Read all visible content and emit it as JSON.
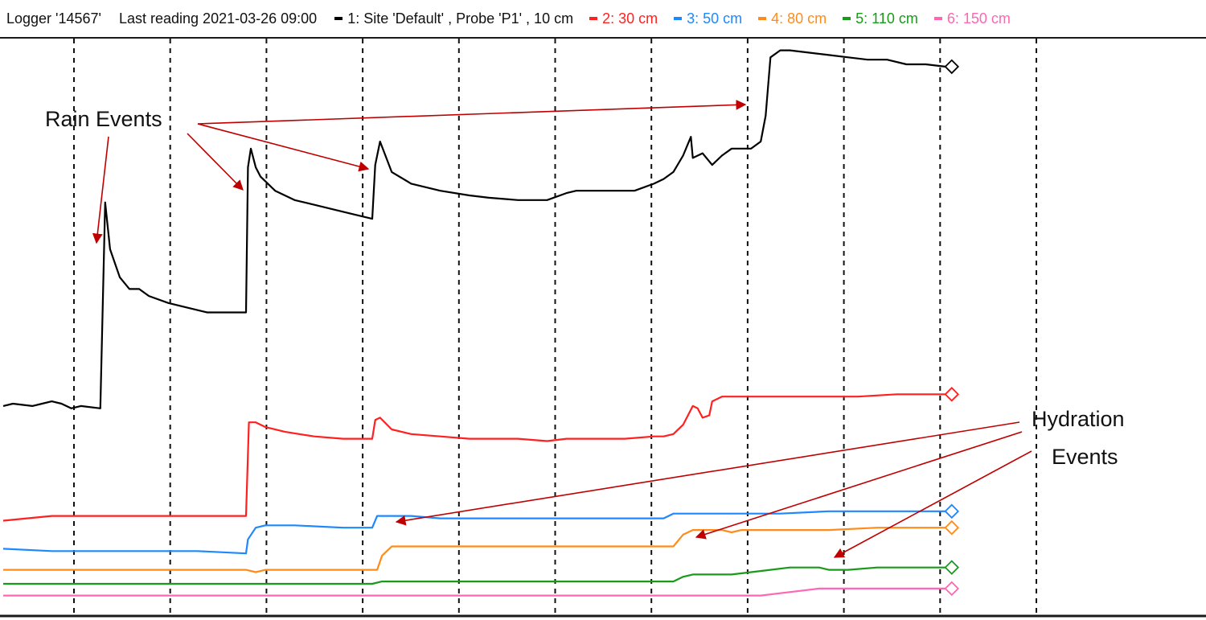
{
  "header": {
    "logger": "Logger '14567'",
    "last_reading": "Last reading 2021-03-26 09:00"
  },
  "legend": [
    {
      "label": "1: Site 'Default' , Probe 'P1' , 10 cm",
      "color": "#000000"
    },
    {
      "label": "2: 30 cm",
      "color": "#ff2020"
    },
    {
      "label": "3: 50 cm",
      "color": "#1e88ff"
    },
    {
      "label": "4: 80 cm",
      "color": "#ff8c1a"
    },
    {
      "label": "5: 110 cm",
      "color": "#1a9a1a"
    },
    {
      "label": "6: 150 cm",
      "color": "#ff66b3"
    }
  ],
  "annotations": {
    "rain_label": "Rain Events",
    "hydration_label_line1": "Hydration",
    "hydration_label_line2": "Events",
    "arrow_color": "#c00000"
  },
  "chart_data": {
    "type": "line",
    "title": "",
    "xlabel": "",
    "ylabel": "",
    "grid": "vertical dashed",
    "legend_position": "top",
    "series": [
      {
        "name": "1: Site 'Default' , Probe 'P1' , 10 cm",
        "color": "#000000",
        "points": [
          [
            0,
            520
          ],
          [
            1,
            519
          ],
          [
            3,
            520
          ],
          [
            4,
            519
          ],
          [
            5,
            518
          ],
          [
            6,
            519
          ],
          [
            7,
            521
          ],
          [
            8,
            520
          ],
          [
            10,
            521
          ],
          [
            10.5,
            433
          ],
          [
            11,
            453
          ],
          [
            12,
            465
          ],
          [
            13,
            470
          ],
          [
            14,
            470
          ],
          [
            15,
            473
          ],
          [
            17,
            476
          ],
          [
            19,
            478
          ],
          [
            21,
            480
          ],
          [
            23,
            480
          ],
          [
            25,
            480
          ],
          [
            25.2,
            418
          ],
          [
            25.5,
            410
          ],
          [
            26,
            418
          ],
          [
            26.5,
            422
          ],
          [
            28,
            428
          ],
          [
            30,
            432
          ],
          [
            32,
            434
          ],
          [
            34,
            436
          ],
          [
            36,
            438
          ],
          [
            38,
            440
          ],
          [
            38.3,
            417
          ],
          [
            38.8,
            407
          ],
          [
            40,
            420
          ],
          [
            42,
            425
          ],
          [
            45,
            428
          ],
          [
            48,
            430
          ],
          [
            50,
            431
          ],
          [
            53,
            432
          ],
          [
            56,
            432
          ],
          [
            58,
            429
          ],
          [
            59,
            428
          ],
          [
            62,
            428
          ],
          [
            65,
            428
          ],
          [
            67,
            425
          ],
          [
            68,
            423
          ],
          [
            69,
            420
          ],
          [
            70,
            413
          ],
          [
            70.8,
            405
          ],
          [
            71,
            414
          ],
          [
            72,
            412
          ],
          [
            73,
            417
          ],
          [
            74,
            413
          ],
          [
            75,
            410
          ],
          [
            76,
            410
          ],
          [
            77,
            410
          ],
          [
            78,
            407
          ],
          [
            78.5,
            396
          ],
          [
            79,
            371
          ],
          [
            80,
            368
          ],
          [
            81,
            368
          ],
          [
            83,
            369
          ],
          [
            85,
            370
          ],
          [
            87,
            371
          ],
          [
            89,
            372
          ],
          [
            91,
            372
          ],
          [
            93,
            374
          ],
          [
            95,
            374
          ],
          [
            97,
            375
          ]
        ]
      },
      {
        "name": "2: 30 cm",
        "color": "#ff2020",
        "points": [
          [
            0,
            569
          ],
          [
            5,
            567
          ],
          [
            10,
            567
          ],
          [
            15,
            567
          ],
          [
            20,
            567
          ],
          [
            25,
            567
          ],
          [
            25.3,
            527
          ],
          [
            26,
            527
          ],
          [
            27,
            529
          ],
          [
            29,
            531
          ],
          [
            32,
            533
          ],
          [
            35,
            534
          ],
          [
            38,
            534
          ],
          [
            38.3,
            526
          ],
          [
            38.8,
            525
          ],
          [
            40,
            530
          ],
          [
            42,
            532
          ],
          [
            45,
            533
          ],
          [
            48,
            534
          ],
          [
            50,
            534
          ],
          [
            53,
            534
          ],
          [
            56,
            535
          ],
          [
            58,
            534
          ],
          [
            61,
            534
          ],
          [
            64,
            534
          ],
          [
            67,
            533
          ],
          [
            68,
            533
          ],
          [
            69,
            532
          ],
          [
            70,
            528
          ],
          [
            71,
            520
          ],
          [
            71.5,
            521
          ],
          [
            72,
            525
          ],
          [
            72.7,
            524
          ],
          [
            73,
            518
          ],
          [
            74,
            516
          ],
          [
            76,
            516
          ],
          [
            80,
            516
          ],
          [
            84,
            516
          ],
          [
            88,
            516
          ],
          [
            92,
            515
          ],
          [
            96,
            515
          ],
          [
            97,
            515
          ]
        ]
      },
      {
        "name": "3: 50 cm",
        "color": "#1e88ff",
        "points": [
          [
            0,
            581
          ],
          [
            5,
            582
          ],
          [
            10,
            582
          ],
          [
            15,
            582
          ],
          [
            20,
            582
          ],
          [
            25,
            583
          ],
          [
            25.2,
            577
          ],
          [
            26,
            572
          ],
          [
            27,
            571
          ],
          [
            30,
            571
          ],
          [
            35,
            572
          ],
          [
            38,
            572
          ],
          [
            38.5,
            567
          ],
          [
            39,
            567
          ],
          [
            42,
            567
          ],
          [
            45,
            568
          ],
          [
            50,
            568
          ],
          [
            55,
            568
          ],
          [
            60,
            568
          ],
          [
            65,
            568
          ],
          [
            68,
            568
          ],
          [
            69,
            566
          ],
          [
            70,
            566
          ],
          [
            72,
            566
          ],
          [
            75,
            566
          ],
          [
            80,
            566
          ],
          [
            85,
            565
          ],
          [
            90,
            565
          ],
          [
            95,
            565
          ],
          [
            97,
            565
          ]
        ]
      },
      {
        "name": "4: 80 cm",
        "color": "#ff8c1a",
        "points": [
          [
            0,
            590
          ],
          [
            5,
            590
          ],
          [
            10,
            590
          ],
          [
            15,
            590
          ],
          [
            20,
            590
          ],
          [
            25,
            590
          ],
          [
            26,
            591
          ],
          [
            27,
            590
          ],
          [
            30,
            590
          ],
          [
            35,
            590
          ],
          [
            38.5,
            590
          ],
          [
            39,
            584
          ],
          [
            40,
            580
          ],
          [
            42,
            580
          ],
          [
            45,
            580
          ],
          [
            50,
            580
          ],
          [
            55,
            580
          ],
          [
            60,
            580
          ],
          [
            65,
            580
          ],
          [
            69,
            580
          ],
          [
            70,
            575
          ],
          [
            71,
            573
          ],
          [
            73,
            573
          ],
          [
            74,
            573
          ],
          [
            75,
            574
          ],
          [
            76,
            573
          ],
          [
            80,
            573
          ],
          [
            85,
            573
          ],
          [
            90,
            572
          ],
          [
            95,
            572
          ],
          [
            97,
            572
          ]
        ]
      },
      {
        "name": "5: 110 cm",
        "color": "#1a9a1a",
        "points": [
          [
            0,
            596
          ],
          [
            5,
            596
          ],
          [
            10,
            596
          ],
          [
            15,
            596
          ],
          [
            20,
            596
          ],
          [
            25,
            596
          ],
          [
            30,
            596
          ],
          [
            35,
            596
          ],
          [
            38,
            596
          ],
          [
            39,
            595
          ],
          [
            40,
            595
          ],
          [
            45,
            595
          ],
          [
            50,
            595
          ],
          [
            55,
            595
          ],
          [
            60,
            595
          ],
          [
            65,
            595
          ],
          [
            69,
            595
          ],
          [
            70,
            593
          ],
          [
            71,
            592
          ],
          [
            73,
            592
          ],
          [
            75,
            592
          ],
          [
            77,
            591
          ],
          [
            79,
            590
          ],
          [
            81,
            589
          ],
          [
            83,
            589
          ],
          [
            84,
            589
          ],
          [
            85,
            590
          ],
          [
            87,
            590
          ],
          [
            90,
            589
          ],
          [
            93,
            589
          ],
          [
            95,
            589
          ],
          [
            97,
            589
          ]
        ]
      },
      {
        "name": "6: 150 cm",
        "color": "#ff66b3",
        "points": [
          [
            0,
            601
          ],
          [
            5,
            601
          ],
          [
            10,
            601
          ],
          [
            15,
            601
          ],
          [
            20,
            601
          ],
          [
            25,
            601
          ],
          [
            30,
            601
          ],
          [
            35,
            601
          ],
          [
            38,
            601
          ],
          [
            40,
            601
          ],
          [
            45,
            601
          ],
          [
            50,
            601
          ],
          [
            55,
            601
          ],
          [
            60,
            601
          ],
          [
            65,
            601
          ],
          [
            70,
            601
          ],
          [
            75,
            601
          ],
          [
            78,
            601
          ],
          [
            80,
            600
          ],
          [
            82,
            599
          ],
          [
            84,
            598
          ],
          [
            86,
            598
          ],
          [
            88,
            598
          ],
          [
            92,
            598
          ],
          [
            95,
            598
          ],
          [
            97,
            598
          ]
        ]
      }
    ]
  }
}
